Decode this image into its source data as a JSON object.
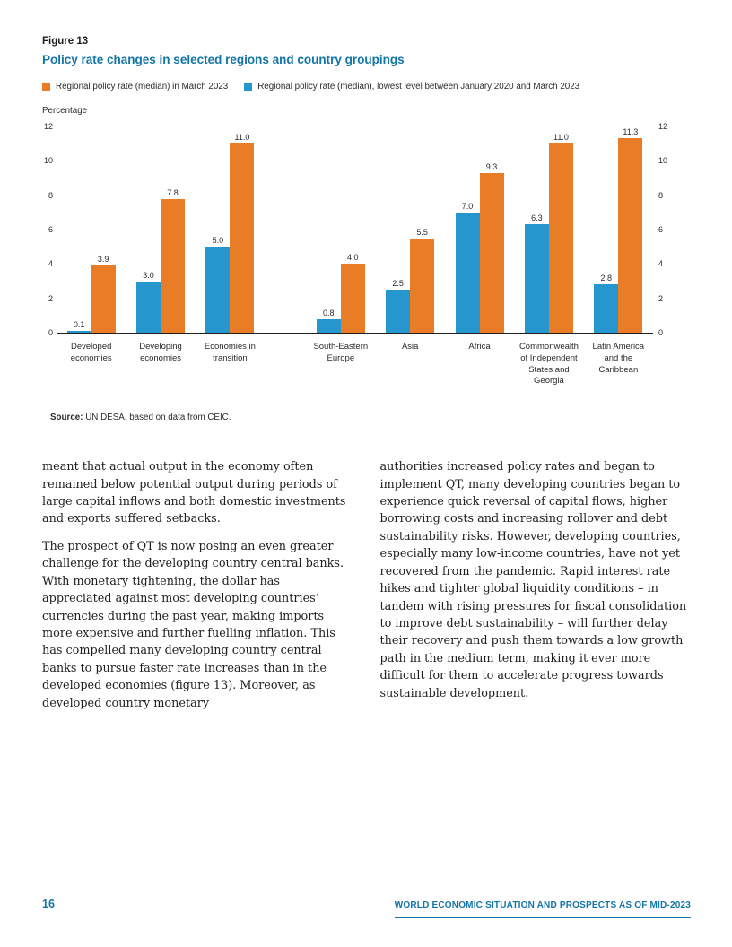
{
  "figure": {
    "label": "Figure 13",
    "title": "Policy rate changes in selected regions and country groupings",
    "source_prefix": "Source:",
    "source_text": " UN DESA, based on data from CEIC."
  },
  "chart_data": {
    "type": "bar",
    "unit_label": "Percentage",
    "ylim": [
      0,
      12
    ],
    "yticks": [
      0,
      2,
      4,
      6,
      8,
      10,
      12
    ],
    "grid": false,
    "legend_position": "top",
    "legend": [
      {
        "label": "Regional policy rate (median) in March 2023",
        "color": "#e87c27"
      },
      {
        "label": "Regional policy rate (median), lowest level between January 2020 and March 2023",
        "color": "#2596ce"
      }
    ],
    "categories": [
      "Developed economies",
      "Developing economies",
      "Economies in transition",
      "South-Eastern Europe",
      "Asia",
      "Africa",
      "Commonwealth of Independent States and Georgia",
      "Latin America and the Caribbean"
    ],
    "cluster_break_after": 3,
    "series": [
      {
        "name": "lowest-level",
        "color": "#2596ce",
        "values": [
          0.1,
          3.0,
          5.0,
          0.8,
          2.5,
          7.0,
          6.3,
          2.8
        ]
      },
      {
        "name": "march-2023",
        "color": "#e87c27",
        "values": [
          3.9,
          7.8,
          11.0,
          4.0,
          5.5,
          9.3,
          11.0,
          11.3
        ]
      }
    ]
  },
  "body": {
    "left_paragraphs": [
      "meant that actual output in the economy often remained below potential output during periods of large capital inflows and both domestic investments and exports suffered setbacks.",
      "The prospect of QT is now posing an even greater challenge for the developing country central banks. With monetary tightening, the dollar has appreciated against most developing countries’ currencies during the past year, making imports more expensive and further fuelling inflation. This has compelled many developing country central banks to pursue faster rate increases than in the developed economies (figure 13). Moreover, as developed country monetary"
    ],
    "right_paragraphs": [
      "authorities increased policy rates and began to implement QT, many developing countries began to experience quick reversal of capital flows, higher borrowing costs and increasing rollover and debt sustainability risks. However, developing countries, especially many low-income countries, have not yet recovered from the pandemic. Rapid interest rate hikes and tighter global liquidity conditions – in tandem with rising pressures for fiscal consolidation to improve debt sustainability – will further delay their recovery and push them towards a low growth path in the medium term, making it ever more difficult for them to accelerate progress towards sustainable development."
    ]
  },
  "footer": {
    "page_number": "16",
    "text": "WORLD ECONOMIC SITUATION AND PROSPECTS AS OF MID-2023"
  }
}
